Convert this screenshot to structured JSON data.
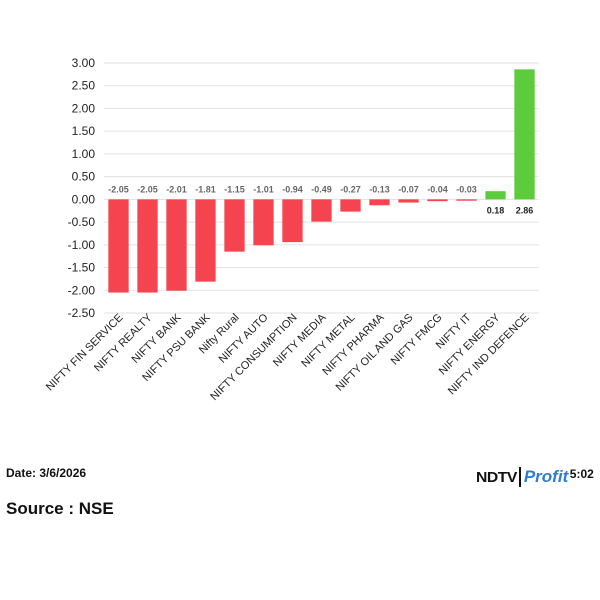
{
  "chart_data": {
    "type": "bar",
    "categories": [
      "NIFTY FIN SERVICE",
      "NIFTY REALTY",
      "NIFTY BANK",
      "NIFTY PSU BANK",
      "Nifty Rural",
      "NIFTY AUTO",
      "NIFTY CONSUMPTION",
      "NIFTY MEDIA",
      "NIFTY METAL",
      "NIFTY PHARMA",
      "NIFTY OIL AND GAS",
      "NIFTY FMCG",
      "NIFTY IT",
      "NIFTY ENERGY",
      "NIFTY IND DEFENCE"
    ],
    "values": [
      -2.05,
      -2.05,
      -2.01,
      -1.81,
      -1.15,
      -1.01,
      -0.94,
      -0.49,
      -0.27,
      -0.13,
      -0.07,
      -0.04,
      -0.03,
      0.18,
      2.86
    ],
    "data_labels": [
      "-2.05",
      "-2.05",
      "-2.01",
      "-1.81",
      "-1.15",
      "-1.01",
      "-0.94",
      "-0.49",
      "-0.27",
      "-0.13",
      "-0.07",
      "-0.04",
      "-0.03",
      "0.18",
      "2.86"
    ],
    "ylim": [
      -2.5,
      3.0
    ],
    "yticks": [
      "3.00",
      "2.50",
      "2.00",
      "1.50",
      "1.00",
      "0.50",
      "0.00",
      "-0.50",
      "-1.00",
      "-1.50",
      "-2.00",
      "-2.50"
    ],
    "grid": true,
    "colors": {
      "negative": "#f5434f",
      "positive": "#5ccc3c"
    },
    "title": "",
    "xlabel": "",
    "ylabel": ""
  },
  "footer": {
    "date": "Date: 3/6/2026",
    "source": "Source : NSE",
    "time": "Time: 15:02"
  },
  "logo": {
    "part1": "NDTV",
    "part2": "Profit"
  }
}
